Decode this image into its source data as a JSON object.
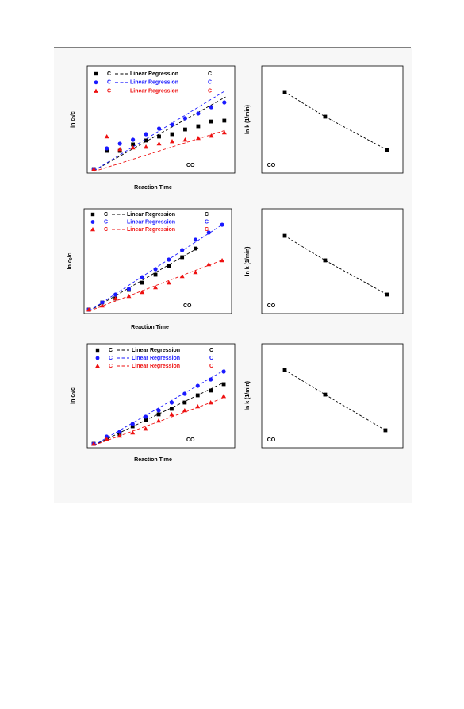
{
  "chart_data": [
    {
      "type": "scatter",
      "xlabel": "Reaction Time",
      "ylabel": "ln c",
      "ylabel_sub": "0",
      "ylabel_tail": "/c",
      "annotation": "CO",
      "xlim": [
        -0.5,
        10.8
      ],
      "ylim": [
        0,
        10
      ],
      "series": [
        {
          "name": "C",
          "fit_label": "Linear Regression",
          "suffix": "C",
          "color": "#000000",
          "marker": "square",
          "x": [
            0,
            1,
            2,
            3,
            4,
            5,
            6,
            7,
            8,
            9,
            10
          ],
          "values": [
            0.37,
            2.07,
            2.07,
            2.67,
            3.04,
            3.41,
            3.63,
            4.07,
            4.37,
            4.81,
            4.89
          ],
          "fit_x": [
            0,
            10.1
          ],
          "fit_values": [
            0.22,
            7.1
          ]
        },
        {
          "name": "C",
          "fit_label": "Linear Regression",
          "suffix": "C",
          "color": "#1a1aff",
          "marker": "circle",
          "x": [
            0,
            1,
            2,
            3,
            4,
            5,
            6,
            7,
            8,
            9,
            10
          ],
          "values": [
            0.37,
            2.3,
            2.74,
            3.11,
            3.63,
            4.15,
            4.52,
            5.11,
            5.56,
            6.15,
            6.59
          ],
          "fit_x": [
            0,
            10.1
          ],
          "fit_values": [
            0.22,
            7.7
          ]
        },
        {
          "name": "C",
          "fit_label": "Linear Regression",
          "suffix": "C",
          "color": "#ee1111",
          "marker": "triangle",
          "x": [
            0,
            1,
            2,
            3,
            4,
            5,
            6,
            7,
            8,
            9,
            10
          ],
          "values": [
            0.37,
            3.41,
            2.22,
            2.37,
            2.44,
            2.74,
            2.96,
            3.11,
            3.26,
            3.48,
            3.78
          ],
          "fit_x": [
            0,
            10.1
          ],
          "fit_values": [
            0.15,
            4.0
          ]
        }
      ]
    },
    {
      "type": "line",
      "ylabel": "ln k (1/min)",
      "annotation": "CO",
      "xlim": [
        0,
        10
      ],
      "ylim": [
        0,
        10
      ],
      "series": [
        {
          "color": "#000000",
          "marker": "square",
          "x": [
            1.63,
            4.49,
            8.88
          ],
          "values": [
            7.56,
            5.26,
            2.15
          ]
        }
      ]
    },
    {
      "type": "scatter",
      "xlabel": "Reaction Time",
      "ylabel": "ln c",
      "ylabel_sub": "0",
      "ylabel_tail": "/c",
      "annotation": "CO",
      "xlim": [
        -0.36,
        10.71
      ],
      "ylim": [
        0,
        10
      ],
      "series": [
        {
          "name": "C",
          "fit_label": "Linear Regression",
          "suffix": "C",
          "color": "#000000",
          "marker": "square",
          "x": [
            0,
            1,
            2,
            3,
            4,
            5,
            6,
            7,
            8
          ],
          "values": [
            0.38,
            1.06,
            1.44,
            2.27,
            2.95,
            3.71,
            4.55,
            5.38,
            6.21
          ],
          "fit_x": [
            0,
            8.21
          ],
          "fit_values": [
            0.23,
            6.29
          ]
        },
        {
          "name": "C",
          "fit_label": "Linear Regression",
          "suffix": "C",
          "color": "#1a1aff",
          "marker": "circle",
          "x": [
            0,
            1,
            2,
            3,
            4,
            5,
            6,
            7,
            8,
            9,
            10
          ],
          "values": [
            0.38,
            1.06,
            1.82,
            2.35,
            3.48,
            4.24,
            5.15,
            6.06,
            7.05,
            7.73,
            8.48
          ],
          "fit_x": [
            0,
            10.1
          ],
          "fit_values": [
            0.23,
            8.56
          ]
        },
        {
          "name": "C",
          "fit_label": "Linear Regression",
          "suffix": "C",
          "color": "#ee1111",
          "marker": "triangle",
          "x": [
            0,
            1,
            2,
            3,
            4,
            5,
            6,
            7,
            8,
            9,
            10
          ],
          "values": [
            0.38,
            0.76,
            1.44,
            1.67,
            2.05,
            2.5,
            2.95,
            3.56,
            3.94,
            4.7,
            5.08
          ],
          "fit_x": [
            0,
            10.1
          ],
          "fit_values": [
            0.23,
            5.15
          ]
        }
      ]
    },
    {
      "type": "line",
      "ylabel": "ln k (1/min)",
      "annotation": "CO",
      "xlim": [
        0,
        10
      ],
      "ylim": [
        0,
        10
      ],
      "series": [
        {
          "color": "#000000",
          "marker": "square",
          "x": [
            1.63,
            4.49,
            8.88
          ],
          "values": [
            7.42,
            5.08,
            1.82
          ]
        }
      ]
    },
    {
      "type": "scatter",
      "xlabel": "Reaction Time",
      "ylabel": "ln c",
      "ylabel_sub": "0",
      "ylabel_tail": "/c",
      "annotation": "CO",
      "xlim": [
        -0.49,
        10.85
      ],
      "ylim": [
        0,
        10
      ],
      "series": [
        {
          "name": "C",
          "fit_label": "Linear Regression",
          "suffix": "C",
          "color": "#000000",
          "marker": "square",
          "x": [
            0,
            1,
            2,
            3,
            4,
            5,
            6,
            7,
            8,
            9,
            10
          ],
          "values": [
            0.38,
            0.84,
            1.3,
            2.06,
            2.67,
            3.21,
            3.74,
            4.35,
            5.04,
            5.5,
            6.11
          ],
          "fit_x": [
            0,
            10
          ],
          "fit_values": [
            0.23,
            6.26
          ]
        },
        {
          "name": "C",
          "fit_label": "Linear Regression",
          "suffix": "C",
          "color": "#1a1aff",
          "marker": "circle",
          "x": [
            0,
            1,
            2,
            3,
            4,
            5,
            6,
            7,
            8,
            9,
            10
          ],
          "values": [
            0.38,
            1.07,
            1.53,
            2.29,
            2.98,
            3.59,
            4.35,
            5.19,
            5.95,
            6.56,
            7.33
          ],
          "fit_x": [
            0,
            10.1
          ],
          "fit_values": [
            0.23,
            7.5
          ]
        },
        {
          "name": "C",
          "fit_label": "Linear Regression",
          "suffix": "C",
          "color": "#ee1111",
          "marker": "triangle",
          "x": [
            0,
            1,
            2,
            3,
            4,
            5,
            6,
            7,
            8,
            9,
            10
          ],
          "values": [
            0.38,
            0.84,
            1.15,
            1.45,
            1.83,
            2.6,
            3.21,
            3.59,
            3.97,
            4.35,
            4.96
          ],
          "fit_x": [
            0,
            10
          ],
          "fit_values": [
            0.23,
            4.8
          ]
        }
      ]
    },
    {
      "type": "line",
      "ylabel": "ln k (1/min)",
      "annotation": "CO",
      "xlim": [
        0,
        10
      ],
      "ylim": [
        0,
        10
      ],
      "series": [
        {
          "color": "#000000",
          "marker": "square",
          "x": [
            1.63,
            4.49,
            8.76
          ],
          "values": [
            7.48,
            5.11,
            1.68
          ]
        }
      ]
    }
  ]
}
